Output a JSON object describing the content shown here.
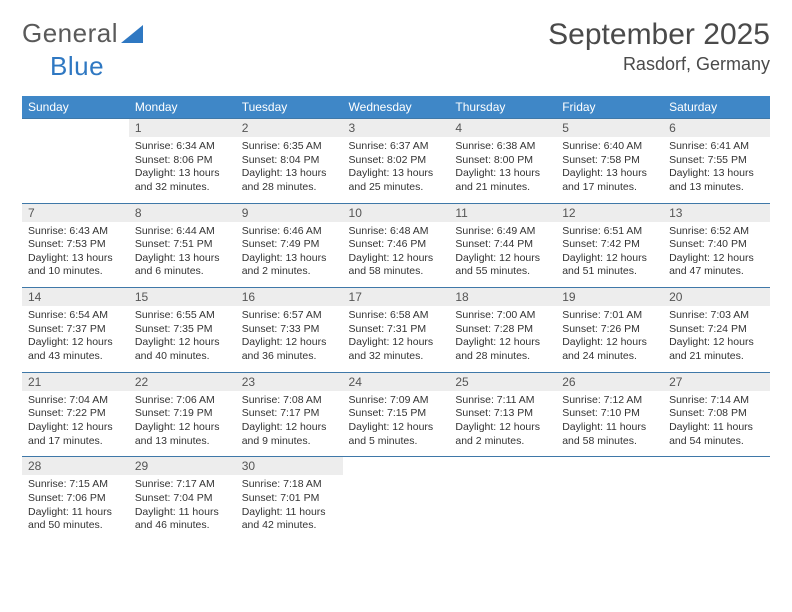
{
  "logo": {
    "text1": "General",
    "text2": "Blue"
  },
  "title": "September 2025",
  "location": "Rasdorf, Germany",
  "colors": {
    "header_bg": "#3f87c7",
    "header_text": "#ffffff",
    "daynum_bg": "#ededed",
    "border": "#3f78a8",
    "logo_gray": "#5a5a5a",
    "logo_blue": "#2f78c2"
  },
  "weekdays": [
    "Sunday",
    "Monday",
    "Tuesday",
    "Wednesday",
    "Thursday",
    "Friday",
    "Saturday"
  ],
  "weeks": [
    [
      {
        "n": "",
        "sr": "",
        "ss": "",
        "dl": ""
      },
      {
        "n": "1",
        "sr": "Sunrise: 6:34 AM",
        "ss": "Sunset: 8:06 PM",
        "dl": "Daylight: 13 hours and 32 minutes."
      },
      {
        "n": "2",
        "sr": "Sunrise: 6:35 AM",
        "ss": "Sunset: 8:04 PM",
        "dl": "Daylight: 13 hours and 28 minutes."
      },
      {
        "n": "3",
        "sr": "Sunrise: 6:37 AM",
        "ss": "Sunset: 8:02 PM",
        "dl": "Daylight: 13 hours and 25 minutes."
      },
      {
        "n": "4",
        "sr": "Sunrise: 6:38 AM",
        "ss": "Sunset: 8:00 PM",
        "dl": "Daylight: 13 hours and 21 minutes."
      },
      {
        "n": "5",
        "sr": "Sunrise: 6:40 AM",
        "ss": "Sunset: 7:58 PM",
        "dl": "Daylight: 13 hours and 17 minutes."
      },
      {
        "n": "6",
        "sr": "Sunrise: 6:41 AM",
        "ss": "Sunset: 7:55 PM",
        "dl": "Daylight: 13 hours and 13 minutes."
      }
    ],
    [
      {
        "n": "7",
        "sr": "Sunrise: 6:43 AM",
        "ss": "Sunset: 7:53 PM",
        "dl": "Daylight: 13 hours and 10 minutes."
      },
      {
        "n": "8",
        "sr": "Sunrise: 6:44 AM",
        "ss": "Sunset: 7:51 PM",
        "dl": "Daylight: 13 hours and 6 minutes."
      },
      {
        "n": "9",
        "sr": "Sunrise: 6:46 AM",
        "ss": "Sunset: 7:49 PM",
        "dl": "Daylight: 13 hours and 2 minutes."
      },
      {
        "n": "10",
        "sr": "Sunrise: 6:48 AM",
        "ss": "Sunset: 7:46 PM",
        "dl": "Daylight: 12 hours and 58 minutes."
      },
      {
        "n": "11",
        "sr": "Sunrise: 6:49 AM",
        "ss": "Sunset: 7:44 PM",
        "dl": "Daylight: 12 hours and 55 minutes."
      },
      {
        "n": "12",
        "sr": "Sunrise: 6:51 AM",
        "ss": "Sunset: 7:42 PM",
        "dl": "Daylight: 12 hours and 51 minutes."
      },
      {
        "n": "13",
        "sr": "Sunrise: 6:52 AM",
        "ss": "Sunset: 7:40 PM",
        "dl": "Daylight: 12 hours and 47 minutes."
      }
    ],
    [
      {
        "n": "14",
        "sr": "Sunrise: 6:54 AM",
        "ss": "Sunset: 7:37 PM",
        "dl": "Daylight: 12 hours and 43 minutes."
      },
      {
        "n": "15",
        "sr": "Sunrise: 6:55 AM",
        "ss": "Sunset: 7:35 PM",
        "dl": "Daylight: 12 hours and 40 minutes."
      },
      {
        "n": "16",
        "sr": "Sunrise: 6:57 AM",
        "ss": "Sunset: 7:33 PM",
        "dl": "Daylight: 12 hours and 36 minutes."
      },
      {
        "n": "17",
        "sr": "Sunrise: 6:58 AM",
        "ss": "Sunset: 7:31 PM",
        "dl": "Daylight: 12 hours and 32 minutes."
      },
      {
        "n": "18",
        "sr": "Sunrise: 7:00 AM",
        "ss": "Sunset: 7:28 PM",
        "dl": "Daylight: 12 hours and 28 minutes."
      },
      {
        "n": "19",
        "sr": "Sunrise: 7:01 AM",
        "ss": "Sunset: 7:26 PM",
        "dl": "Daylight: 12 hours and 24 minutes."
      },
      {
        "n": "20",
        "sr": "Sunrise: 7:03 AM",
        "ss": "Sunset: 7:24 PM",
        "dl": "Daylight: 12 hours and 21 minutes."
      }
    ],
    [
      {
        "n": "21",
        "sr": "Sunrise: 7:04 AM",
        "ss": "Sunset: 7:22 PM",
        "dl": "Daylight: 12 hours and 17 minutes."
      },
      {
        "n": "22",
        "sr": "Sunrise: 7:06 AM",
        "ss": "Sunset: 7:19 PM",
        "dl": "Daylight: 12 hours and 13 minutes."
      },
      {
        "n": "23",
        "sr": "Sunrise: 7:08 AM",
        "ss": "Sunset: 7:17 PM",
        "dl": "Daylight: 12 hours and 9 minutes."
      },
      {
        "n": "24",
        "sr": "Sunrise: 7:09 AM",
        "ss": "Sunset: 7:15 PM",
        "dl": "Daylight: 12 hours and 5 minutes."
      },
      {
        "n": "25",
        "sr": "Sunrise: 7:11 AM",
        "ss": "Sunset: 7:13 PM",
        "dl": "Daylight: 12 hours and 2 minutes."
      },
      {
        "n": "26",
        "sr": "Sunrise: 7:12 AM",
        "ss": "Sunset: 7:10 PM",
        "dl": "Daylight: 11 hours and 58 minutes."
      },
      {
        "n": "27",
        "sr": "Sunrise: 7:14 AM",
        "ss": "Sunset: 7:08 PM",
        "dl": "Daylight: 11 hours and 54 minutes."
      }
    ],
    [
      {
        "n": "28",
        "sr": "Sunrise: 7:15 AM",
        "ss": "Sunset: 7:06 PM",
        "dl": "Daylight: 11 hours and 50 minutes."
      },
      {
        "n": "29",
        "sr": "Sunrise: 7:17 AM",
        "ss": "Sunset: 7:04 PM",
        "dl": "Daylight: 11 hours and 46 minutes."
      },
      {
        "n": "30",
        "sr": "Sunrise: 7:18 AM",
        "ss": "Sunset: 7:01 PM",
        "dl": "Daylight: 11 hours and 42 minutes."
      },
      {
        "n": "",
        "sr": "",
        "ss": "",
        "dl": ""
      },
      {
        "n": "",
        "sr": "",
        "ss": "",
        "dl": ""
      },
      {
        "n": "",
        "sr": "",
        "ss": "",
        "dl": ""
      },
      {
        "n": "",
        "sr": "",
        "ss": "",
        "dl": ""
      }
    ]
  ]
}
